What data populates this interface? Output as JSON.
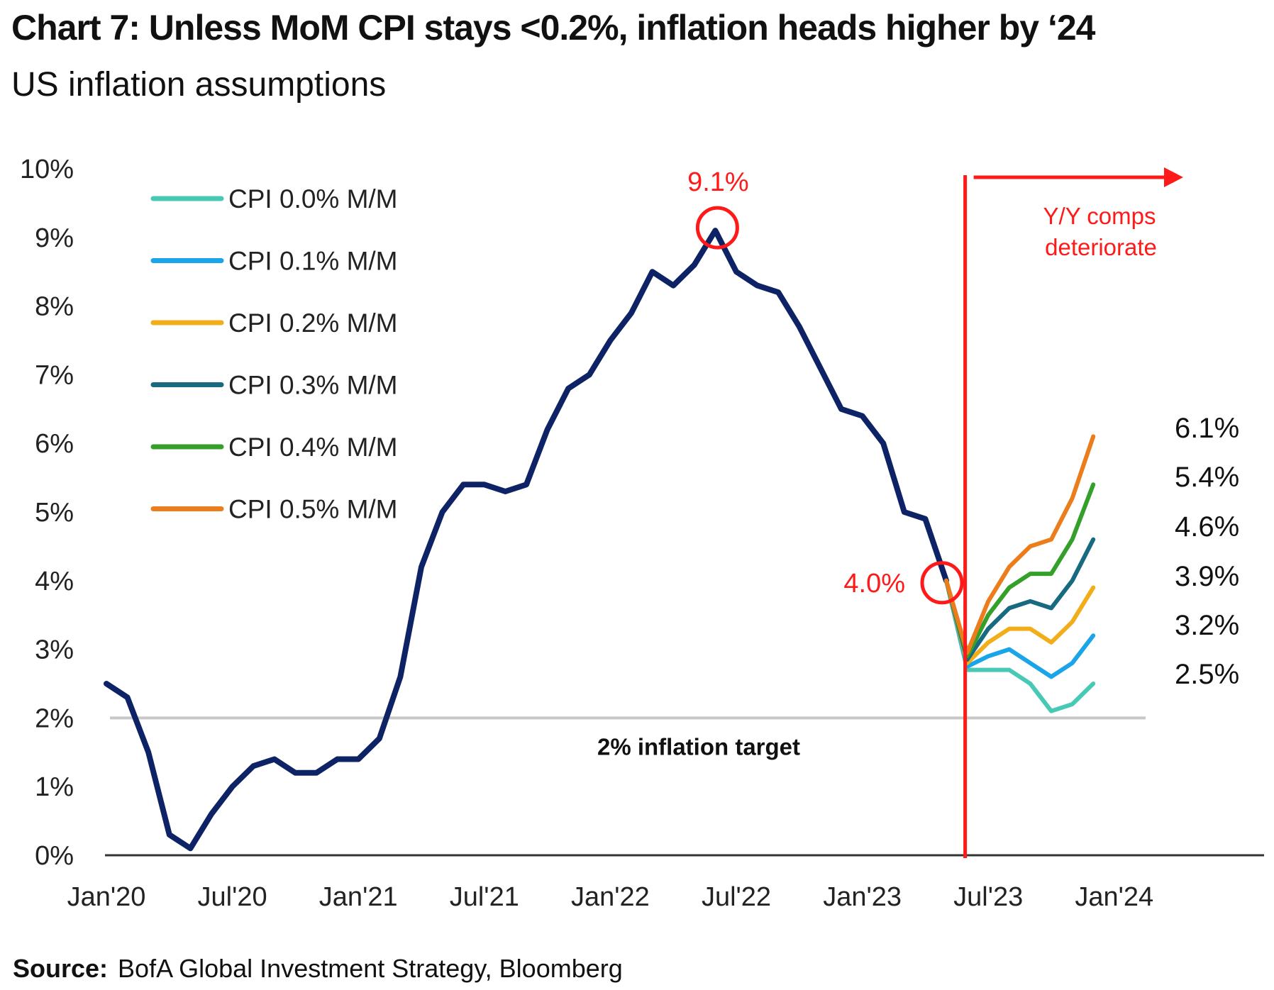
{
  "title": "Chart 7: Unless MoM CPI stays <0.2%, inflation heads higher by ‘24",
  "subtitle": "US inflation assumptions",
  "source_label": "Source:",
  "source_text": "BofA Global Investment Strategy, Bloomberg",
  "chart_data": {
    "type": "line",
    "y_ticks": [
      "10%",
      "9%",
      "8%",
      "7%",
      "6%",
      "5%",
      "4%",
      "3%",
      "2%",
      "1%",
      "0%"
    ],
    "ylim": [
      0,
      10
    ],
    "x_ticks": [
      {
        "label": "Jan'20",
        "month": "2020-01"
      },
      {
        "label": "Jul'20",
        "month": "2020-07"
      },
      {
        "label": "Jan'21",
        "month": "2021-01"
      },
      {
        "label": "Jul'21",
        "month": "2021-07"
      },
      {
        "label": "Jan'22",
        "month": "2022-01"
      },
      {
        "label": "Jul'22",
        "month": "2022-07"
      },
      {
        "label": "Jan'23",
        "month": "2023-01"
      },
      {
        "label": "Jul'23",
        "month": "2023-07"
      },
      {
        "label": "Jan'24",
        "month": "2024-01"
      }
    ],
    "xlim": [
      "2020-01",
      "2024-03"
    ],
    "grid": false,
    "legend_position": "top-left",
    "actual": {
      "color": "#0d2366",
      "start_month": "2020-01",
      "values": [
        2.5,
        2.3,
        1.5,
        0.3,
        0.1,
        0.6,
        1.0,
        1.3,
        1.4,
        1.2,
        1.2,
        1.4,
        1.4,
        1.7,
        2.6,
        4.2,
        5.0,
        5.4,
        5.4,
        5.3,
        5.4,
        6.2,
        6.8,
        7.0,
        7.5,
        7.9,
        8.5,
        8.3,
        8.6,
        9.1,
        8.5,
        8.3,
        8.2,
        7.7,
        7.1,
        6.5,
        6.4,
        6.0,
        5.0,
        4.9,
        4.0
      ]
    },
    "scenarios": {
      "start_month": "2023-05",
      "series": [
        {
          "name": "CPI 0.0% M/M",
          "color": "#47c9b5",
          "end_label": "2.5%",
          "values": [
            4.0,
            2.7,
            2.7,
            2.7,
            2.5,
            2.1,
            2.2,
            2.5
          ]
        },
        {
          "name": "CPI 0.1% M/M",
          "color": "#1aa5e8",
          "end_label": "3.2%",
          "values": [
            4.0,
            2.75,
            2.9,
            3.0,
            2.8,
            2.6,
            2.8,
            3.2
          ]
        },
        {
          "name": "CPI 0.2% M/M",
          "color": "#f2ad1a",
          "end_label": "3.9%",
          "values": [
            4.0,
            2.8,
            3.1,
            3.3,
            3.3,
            3.1,
            3.4,
            3.9
          ]
        },
        {
          "name": "CPI 0.3% M/M",
          "color": "#176a80",
          "end_label": "4.6%",
          "values": [
            4.0,
            2.85,
            3.3,
            3.6,
            3.7,
            3.6,
            4.0,
            4.6
          ]
        },
        {
          "name": "CPI 0.4% M/M",
          "color": "#34a02a",
          "end_label": "5.4%",
          "values": [
            4.0,
            2.9,
            3.5,
            3.9,
            4.1,
            4.1,
            4.6,
            5.4
          ]
        },
        {
          "name": "CPI 0.5% M/M",
          "color": "#ec7d1c",
          "end_label": "6.1%",
          "values": [
            4.0,
            2.95,
            3.7,
            4.2,
            4.5,
            4.6,
            5.2,
            6.1
          ]
        }
      ]
    },
    "target": {
      "value": 2.0,
      "label": "2% inflation target",
      "color": "#c8c8c8"
    },
    "annotations": [
      {
        "label": "9.1%",
        "month": "2022-06",
        "value": 9.1,
        "color": "#ff1a1a"
      },
      {
        "label": "4.0%",
        "month": "2023-05",
        "value": 4.0,
        "color": "#ff1a1a"
      }
    ],
    "divider": {
      "month": "2023-06",
      "color": "#ff1a1a",
      "label_line1": "Y/Y comps",
      "label_line2": "deteriorate"
    }
  }
}
